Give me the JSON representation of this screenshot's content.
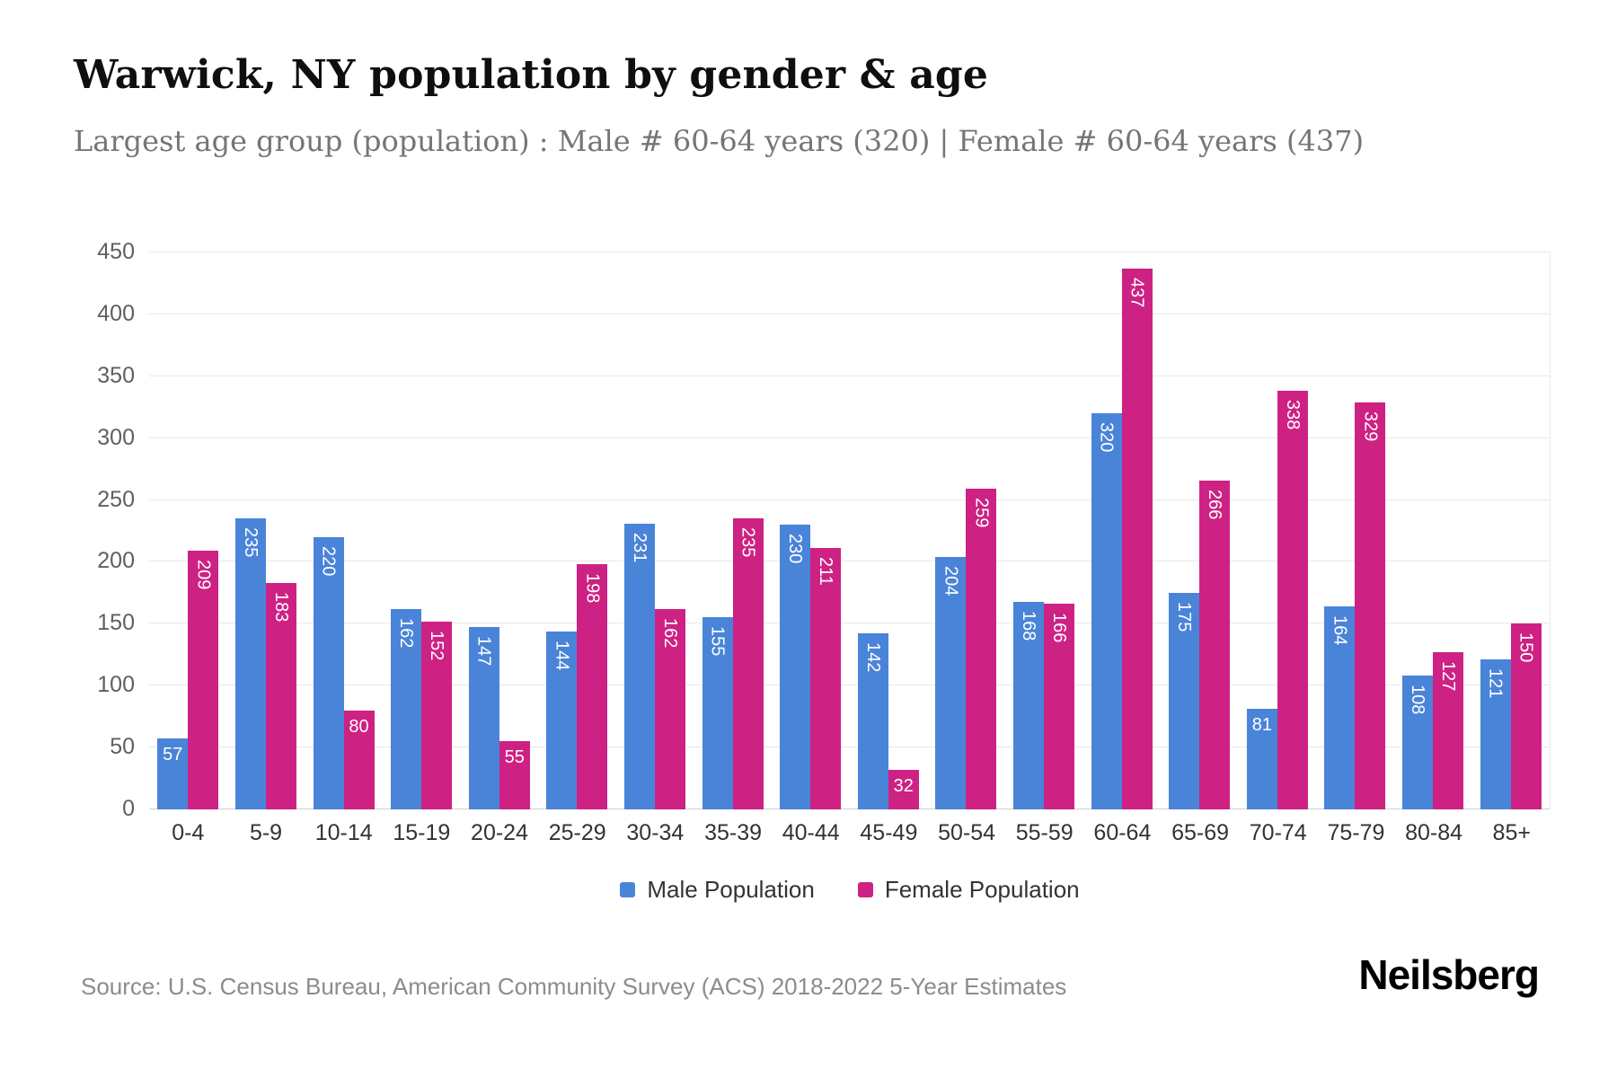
{
  "header": {
    "title": "Warwick, NY population by gender & age",
    "subtitle": "Largest age group (population) : Male # 60-64 years (320) | Female # 60-64 years (437)"
  },
  "chart_data": {
    "type": "bar",
    "categories": [
      "0-4",
      "5-9",
      "10-14",
      "15-19",
      "20-24",
      "25-29",
      "30-34",
      "35-39",
      "40-44",
      "45-49",
      "50-54",
      "55-59",
      "60-64",
      "65-69",
      "70-74",
      "75-79",
      "80-84",
      "85+"
    ],
    "series": [
      {
        "name": "Male Population",
        "color": "#4a84d8",
        "values": [
          57,
          235,
          220,
          162,
          147,
          144,
          231,
          155,
          230,
          142,
          204,
          168,
          320,
          175,
          81,
          164,
          108,
          121
        ]
      },
      {
        "name": "Female Population",
        "color": "#ce2184",
        "values": [
          209,
          183,
          80,
          152,
          55,
          198,
          162,
          235,
          211,
          32,
          259,
          166,
          437,
          266,
          338,
          329,
          127,
          150
        ]
      }
    ],
    "title": "Warwick, NY population by gender & age",
    "xlabel": "",
    "ylabel": "",
    "ylim": [
      0,
      450
    ],
    "ytick_step": 50,
    "grid": true,
    "legend_position": "bottom",
    "value_labels": "inside-top, white, vertical for 3-digit values"
  },
  "footer": {
    "source": "Source: U.S. Census Bureau, American Community Survey (ACS) 2018-2022 5-Year Estimates",
    "brand": "Neilsberg"
  }
}
